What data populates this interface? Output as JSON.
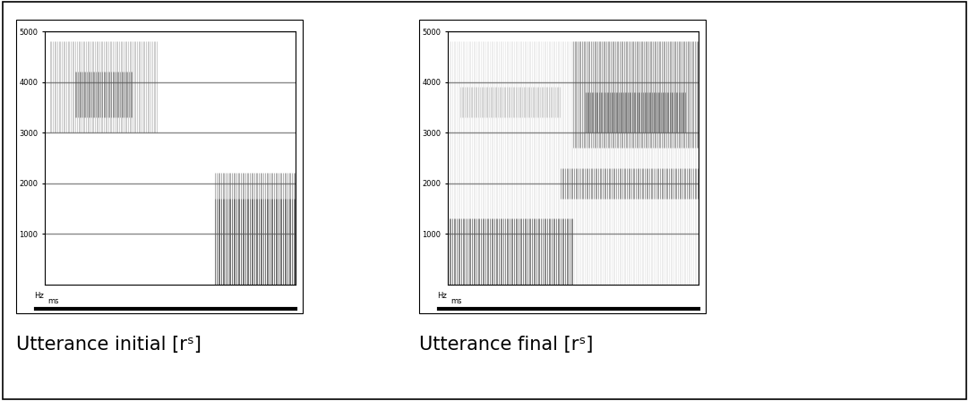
{
  "chart_data": [
    {
      "type": "spectrogram",
      "title": "Utterance initial [rˢ]",
      "x_label": "ms",
      "y_label": "Hz",
      "xlim": [
        0,
        1
      ],
      "ylim": [
        0,
        5000
      ],
      "yticks": [
        1000,
        2000,
        3000,
        4000,
        5000
      ],
      "grid": true,
      "tick_labels": "y",
      "color": "#555555",
      "regions": [
        {
          "time": [
            0.02,
            0.45
          ],
          "freq": [
            3000,
            4800
          ],
          "intensity": 0.35
        },
        {
          "time": [
            0.12,
            0.35
          ],
          "freq": [
            3300,
            4200
          ],
          "intensity": 0.6
        },
        {
          "time": [
            0.68,
            1.0
          ],
          "freq": [
            0,
            2200
          ],
          "intensity": 0.55
        },
        {
          "time": [
            0.68,
            1.0
          ],
          "freq": [
            0,
            1700
          ],
          "intensity": 0.75
        }
      ]
    },
    {
      "type": "spectrogram",
      "title": "Utterance final [rˢ]",
      "x_label": "ms",
      "y_label": "Hz",
      "xlim": [
        0,
        1
      ],
      "ylim": [
        0,
        5000
      ],
      "yticks": [
        1000,
        2000,
        3000,
        4000,
        5000
      ],
      "grid": true,
      "tick_labels": "y",
      "color": "#555555",
      "regions": [
        {
          "time": [
            0.0,
            1.0
          ],
          "freq": [
            0,
            4800
          ],
          "intensity": 0.12
        },
        {
          "time": [
            0.0,
            0.5
          ],
          "freq": [
            0,
            1300
          ],
          "intensity": 0.75
        },
        {
          "time": [
            0.05,
            0.45
          ],
          "freq": [
            3300,
            3900
          ],
          "intensity": 0.25
        },
        {
          "time": [
            0.45,
            1.0
          ],
          "freq": [
            1700,
            2300
          ],
          "intensity": 0.6
        },
        {
          "time": [
            0.5,
            1.0
          ],
          "freq": [
            2700,
            4800
          ],
          "intensity": 0.55
        },
        {
          "time": [
            0.55,
            0.95
          ],
          "freq": [
            3000,
            3800
          ],
          "intensity": 0.7
        }
      ]
    }
  ]
}
